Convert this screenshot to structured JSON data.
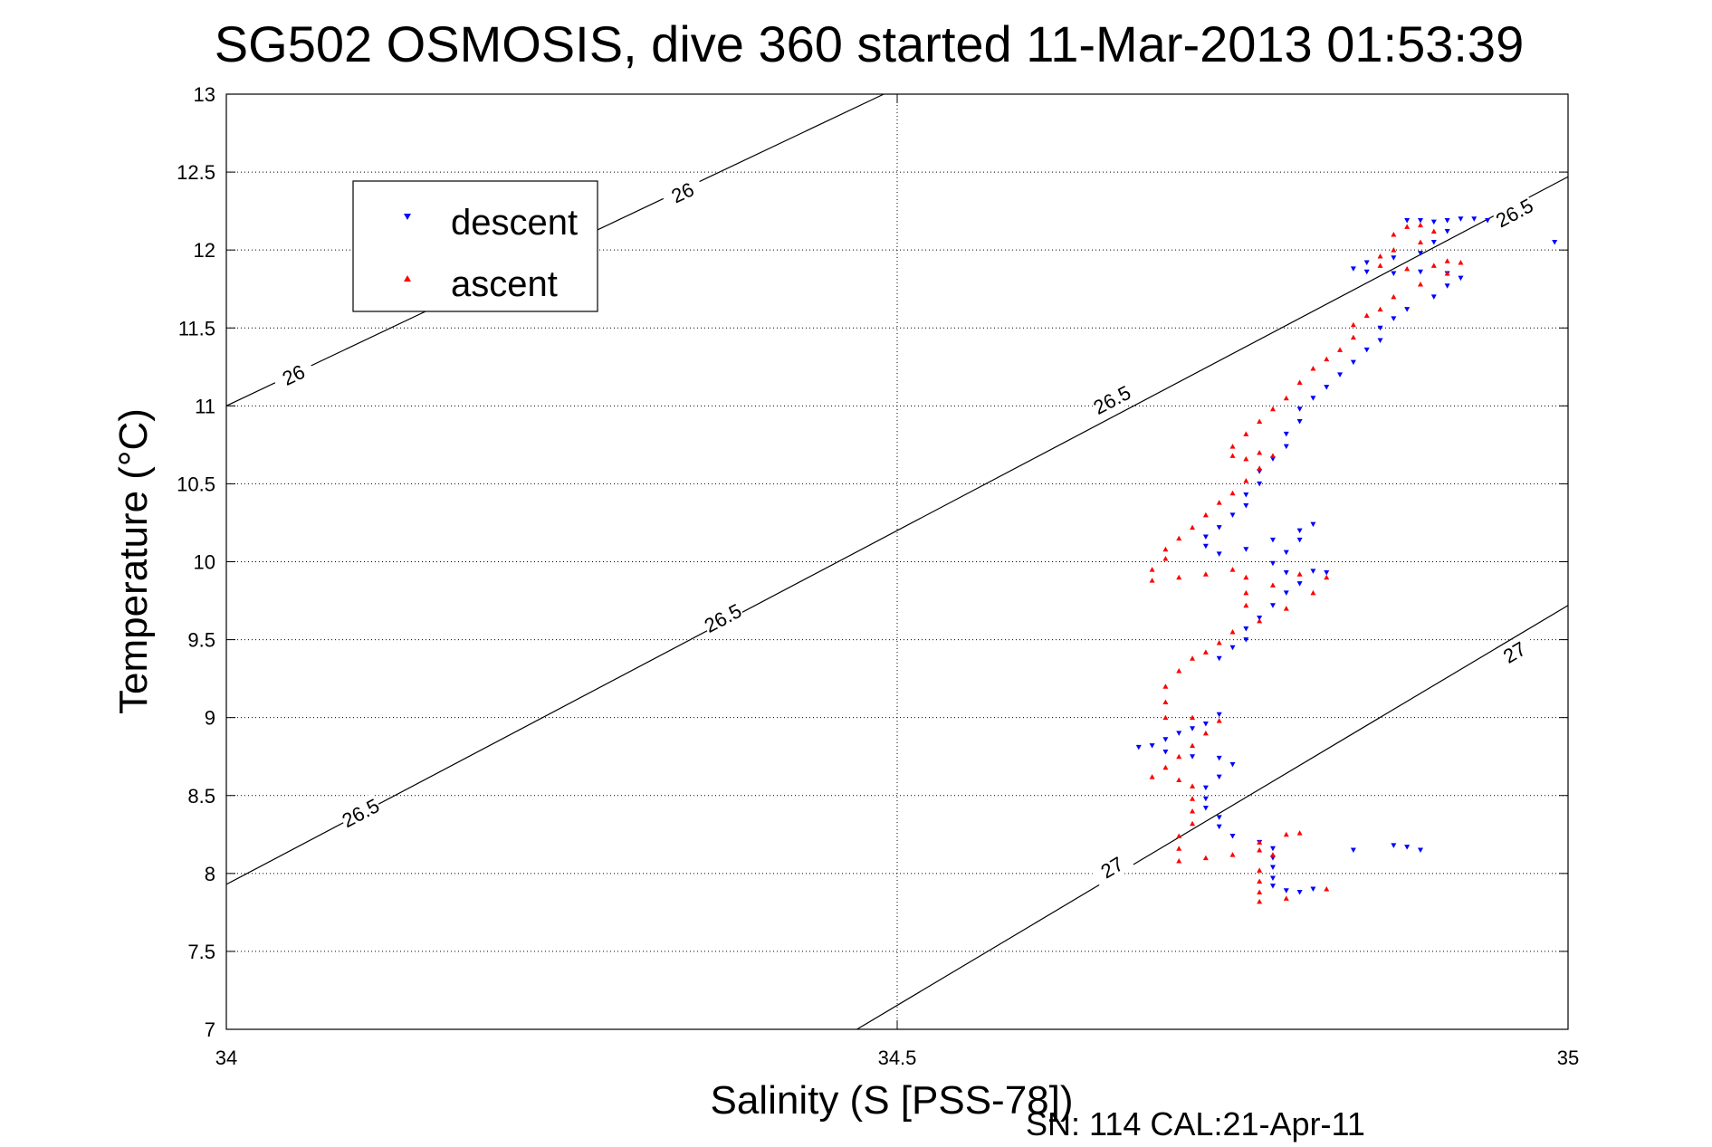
{
  "chart_data": {
    "type": "scatter",
    "title": "SG502 OSMOSIS, dive 360 started 11-Mar-2013 01:53:39",
    "xlabel": "Salinity (S [PSS-78])",
    "ylabel": "Temperature (°C)",
    "footer": "SN: 114  CAL:21-Apr-11",
    "xlim": [
      34,
      35
    ],
    "ylim": [
      7,
      13
    ],
    "x_ticks": [
      34,
      34.5,
      35
    ],
    "x_tick_labels": [
      "34",
      "34.5",
      "35"
    ],
    "y_ticks": [
      7,
      7.5,
      8,
      8.5,
      9,
      9.5,
      10,
      10.5,
      11,
      11.5,
      12,
      12.5,
      13
    ],
    "y_tick_labels": [
      "7",
      "7.5",
      "8",
      "8.5",
      "9",
      "9.5",
      "10",
      "10.5",
      "11",
      "11.5",
      "12",
      "12.5",
      "13"
    ],
    "grid": true,
    "legend_position": "top-left",
    "colors": {
      "descent": "#0000ff",
      "ascent": "#ff0000",
      "contour": "#000000"
    },
    "contours": [
      {
        "level": "26",
        "points": [
          [
            34.0,
            11.0
          ],
          [
            34.49,
            13.0
          ]
        ],
        "labels": [
          {
            "x": 34.05,
            "y": 11.2
          },
          {
            "x": 34.34,
            "y": 12.37
          }
        ]
      },
      {
        "level": "26.5",
        "points": [
          [
            34.0,
            7.93
          ],
          [
            35.0,
            12.47
          ]
        ],
        "labels": [
          {
            "x": 34.1,
            "y": 8.39
          },
          {
            "x": 34.37,
            "y": 9.64
          },
          {
            "x": 34.66,
            "y": 11.04
          },
          {
            "x": 34.96,
            "y": 12.24
          }
        ]
      },
      {
        "level": "27",
        "points": [
          [
            34.47,
            7.0
          ],
          [
            35.0,
            9.72
          ]
        ],
        "labels": [
          {
            "x": 34.66,
            "y": 8.04
          },
          {
            "x": 34.96,
            "y": 9.42
          }
        ]
      }
    ],
    "series": [
      {
        "name": "descent",
        "marker": "triangle-down",
        "color": "#0000ff",
        "points": [
          [
            34.94,
            12.19
          ],
          [
            34.93,
            12.2
          ],
          [
            34.92,
            12.2
          ],
          [
            34.91,
            12.19
          ],
          [
            34.9,
            12.18
          ],
          [
            34.89,
            12.19
          ],
          [
            34.88,
            12.19
          ],
          [
            34.99,
            12.05
          ],
          [
            34.91,
            12.12
          ],
          [
            34.9,
            12.05
          ],
          [
            34.89,
            11.98
          ],
          [
            34.87,
            11.95
          ],
          [
            34.85,
            11.92
          ],
          [
            34.84,
            11.88
          ],
          [
            34.85,
            11.86
          ],
          [
            34.87,
            11.85
          ],
          [
            34.89,
            11.86
          ],
          [
            34.91,
            11.85
          ],
          [
            34.92,
            11.82
          ],
          [
            34.91,
            11.77
          ],
          [
            34.9,
            11.7
          ],
          [
            34.88,
            11.62
          ],
          [
            34.87,
            11.56
          ],
          [
            34.86,
            11.5
          ],
          [
            34.86,
            11.42
          ],
          [
            34.85,
            11.36
          ],
          [
            34.84,
            11.28
          ],
          [
            34.83,
            11.2
          ],
          [
            34.82,
            11.12
          ],
          [
            34.81,
            11.05
          ],
          [
            34.8,
            10.98
          ],
          [
            34.8,
            10.9
          ],
          [
            34.79,
            10.82
          ],
          [
            34.79,
            10.74
          ],
          [
            34.78,
            10.66
          ],
          [
            34.77,
            10.58
          ],
          [
            34.77,
            10.5
          ],
          [
            34.76,
            10.43
          ],
          [
            34.76,
            10.36
          ],
          [
            34.75,
            10.3
          ],
          [
            34.74,
            10.22
          ],
          [
            34.73,
            10.16
          ],
          [
            34.73,
            10.1
          ],
          [
            34.74,
            10.05
          ],
          [
            34.76,
            10.08
          ],
          [
            34.78,
            10.14
          ],
          [
            34.8,
            10.2
          ],
          [
            34.81,
            10.24
          ],
          [
            34.8,
            10.14
          ],
          [
            34.79,
            10.06
          ],
          [
            34.78,
            9.99
          ],
          [
            34.79,
            9.93
          ],
          [
            34.81,
            9.94
          ],
          [
            34.82,
            9.93
          ],
          [
            34.8,
            9.86
          ],
          [
            34.79,
            9.8
          ],
          [
            34.78,
            9.72
          ],
          [
            34.77,
            9.64
          ],
          [
            34.76,
            9.57
          ],
          [
            34.76,
            9.5
          ],
          [
            34.75,
            9.45
          ],
          [
            34.74,
            9.38
          ],
          [
            34.74,
            9.02
          ],
          [
            34.73,
            8.96
          ],
          [
            34.72,
            8.93
          ],
          [
            34.71,
            8.9
          ],
          [
            34.7,
            8.86
          ],
          [
            34.69,
            8.82
          ],
          [
            34.68,
            8.81
          ],
          [
            34.7,
            8.78
          ],
          [
            34.72,
            8.75
          ],
          [
            34.74,
            8.74
          ],
          [
            34.75,
            8.7
          ],
          [
            34.74,
            8.62
          ],
          [
            34.73,
            8.55
          ],
          [
            34.73,
            8.48
          ],
          [
            34.73,
            8.42
          ],
          [
            34.74,
            8.36
          ],
          [
            34.74,
            8.3
          ],
          [
            34.75,
            8.24
          ],
          [
            34.77,
            8.2
          ],
          [
            34.78,
            8.16
          ],
          [
            34.78,
            8.1
          ],
          [
            34.78,
            8.04
          ],
          [
            34.78,
            7.97
          ],
          [
            34.78,
            7.92
          ],
          [
            34.79,
            7.89
          ],
          [
            34.8,
            7.88
          ],
          [
            34.81,
            7.9
          ],
          [
            34.84,
            8.15
          ],
          [
            34.87,
            8.18
          ],
          [
            34.88,
            8.17
          ],
          [
            34.89,
            8.15
          ]
        ]
      },
      {
        "name": "ascent",
        "marker": "triangle-up",
        "color": "#ff0000",
        "points": [
          [
            34.87,
            12.1
          ],
          [
            34.88,
            12.15
          ],
          [
            34.89,
            12.16
          ],
          [
            34.9,
            12.12
          ],
          [
            34.89,
            12.05
          ],
          [
            34.87,
            12.0
          ],
          [
            34.86,
            11.96
          ],
          [
            34.86,
            11.9
          ],
          [
            34.88,
            11.88
          ],
          [
            34.9,
            11.9
          ],
          [
            34.91,
            11.93
          ],
          [
            34.92,
            11.92
          ],
          [
            34.91,
            11.85
          ],
          [
            34.89,
            11.78
          ],
          [
            34.87,
            11.7
          ],
          [
            34.86,
            11.62
          ],
          [
            34.85,
            11.58
          ],
          [
            34.84,
            11.52
          ],
          [
            34.84,
            11.44
          ],
          [
            34.83,
            11.36
          ],
          [
            34.82,
            11.3
          ],
          [
            34.81,
            11.24
          ],
          [
            34.8,
            11.15
          ],
          [
            34.79,
            11.05
          ],
          [
            34.78,
            10.98
          ],
          [
            34.77,
            10.9
          ],
          [
            34.76,
            10.82
          ],
          [
            34.75,
            10.74
          ],
          [
            34.75,
            10.68
          ],
          [
            34.76,
            10.66
          ],
          [
            34.77,
            10.7
          ],
          [
            34.78,
            10.68
          ],
          [
            34.77,
            10.6
          ],
          [
            34.76,
            10.52
          ],
          [
            34.75,
            10.44
          ],
          [
            34.74,
            10.38
          ],
          [
            34.73,
            10.3
          ],
          [
            34.72,
            10.22
          ],
          [
            34.71,
            10.15
          ],
          [
            34.7,
            10.08
          ],
          [
            34.7,
            10.02
          ],
          [
            34.69,
            9.95
          ],
          [
            34.69,
            9.88
          ],
          [
            34.71,
            9.9
          ],
          [
            34.73,
            9.92
          ],
          [
            34.75,
            9.95
          ],
          [
            34.76,
            9.9
          ],
          [
            34.76,
            9.8
          ],
          [
            34.76,
            9.72
          ],
          [
            34.78,
            9.85
          ],
          [
            34.8,
            9.92
          ],
          [
            34.82,
            9.9
          ],
          [
            34.81,
            9.8
          ],
          [
            34.79,
            9.7
          ],
          [
            34.77,
            9.62
          ],
          [
            34.75,
            9.55
          ],
          [
            34.74,
            9.48
          ],
          [
            34.73,
            9.42
          ],
          [
            34.72,
            9.38
          ],
          [
            34.71,
            9.3
          ],
          [
            34.7,
            9.2
          ],
          [
            34.7,
            9.1
          ],
          [
            34.7,
            9.0
          ],
          [
            34.72,
            9.0
          ],
          [
            34.74,
            8.98
          ],
          [
            34.73,
            8.9
          ],
          [
            34.72,
            8.82
          ],
          [
            34.71,
            8.75
          ],
          [
            34.7,
            8.68
          ],
          [
            34.69,
            8.62
          ],
          [
            34.71,
            8.6
          ],
          [
            34.72,
            8.56
          ],
          [
            34.72,
            8.48
          ],
          [
            34.72,
            8.4
          ],
          [
            34.72,
            8.32
          ],
          [
            34.71,
            8.24
          ],
          [
            34.71,
            8.16
          ],
          [
            34.71,
            8.08
          ],
          [
            34.73,
            8.1
          ],
          [
            34.75,
            8.12
          ],
          [
            34.77,
            8.15
          ],
          [
            34.78,
            8.12
          ],
          [
            34.77,
            8.02
          ],
          [
            34.77,
            7.95
          ],
          [
            34.77,
            7.88
          ],
          [
            34.77,
            7.82
          ],
          [
            34.79,
            7.84
          ],
          [
            34.82,
            7.9
          ],
          [
            34.77,
            8.2
          ],
          [
            34.79,
            8.25
          ],
          [
            34.8,
            8.26
          ]
        ]
      }
    ]
  }
}
